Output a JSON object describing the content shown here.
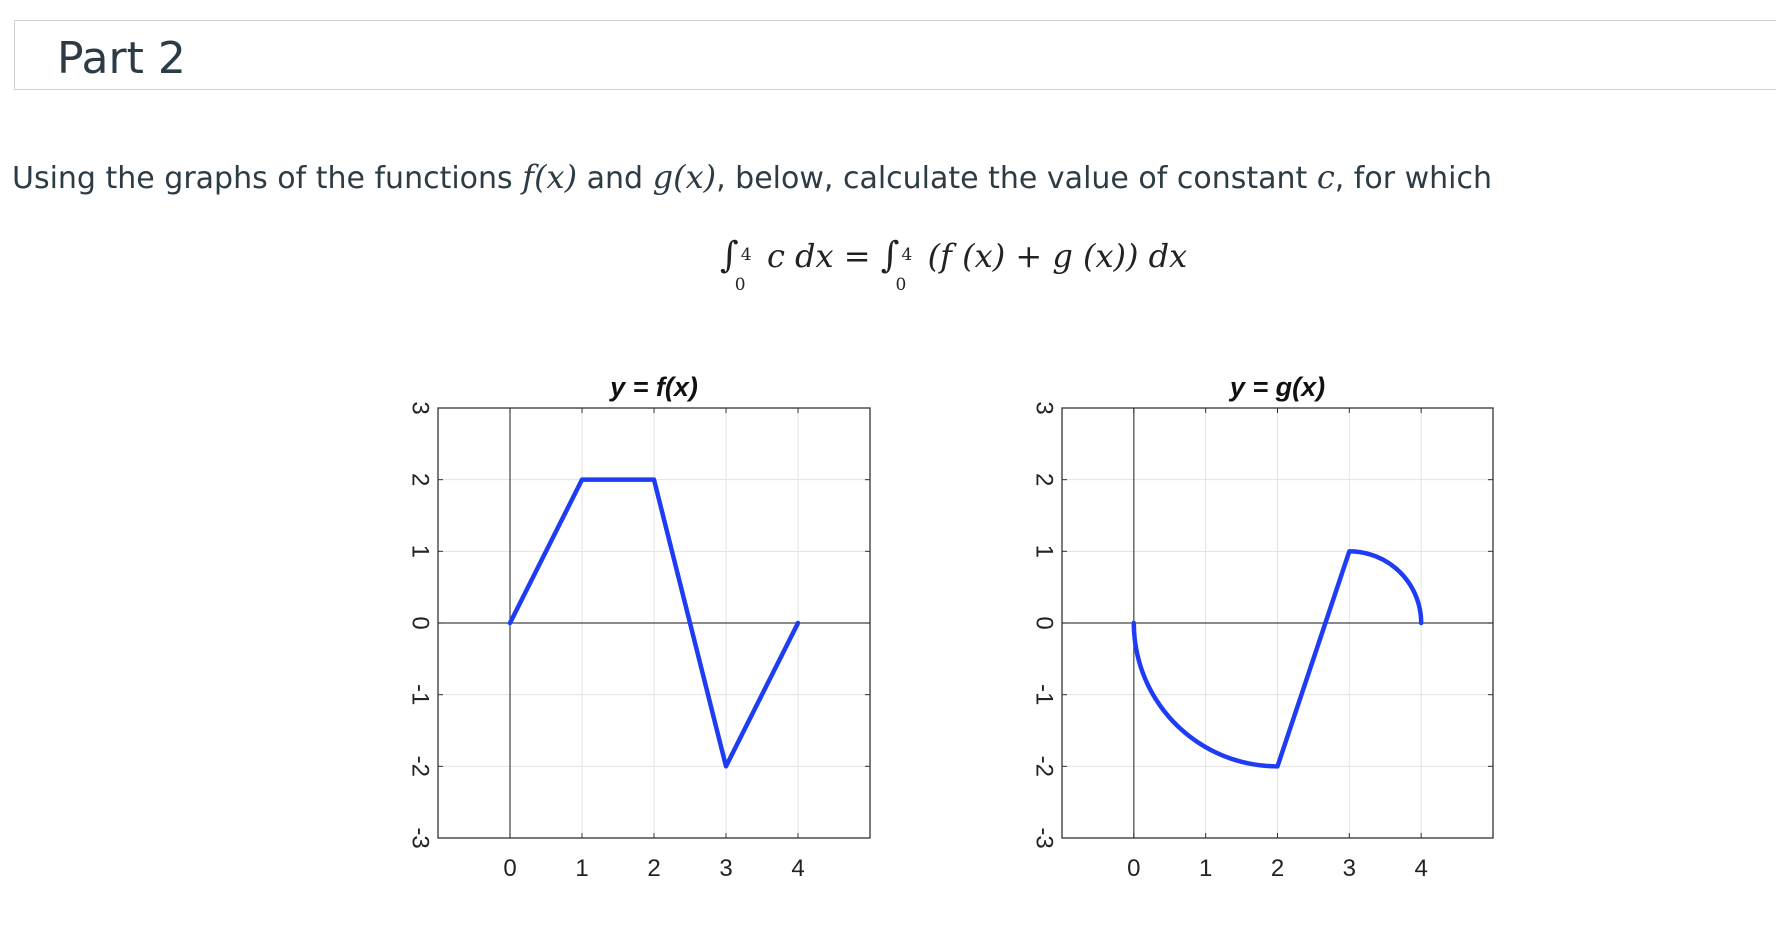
{
  "header": {
    "title": "Part 2"
  },
  "question": {
    "text_before": "Using the graphs of the functions ",
    "f": "f(x)",
    "and": " and ",
    "g": "g(x)",
    "middle": ", below, calculate the value of constant ",
    "c": "c",
    "after": ", for which"
  },
  "equation": {
    "lhs_integral": "∫",
    "lhs_upper": "4",
    "lhs_lower": "0",
    "lhs_body": "c dx",
    "equals": " = ",
    "rhs_integral": "∫",
    "rhs_upper": "4",
    "rhs_lower": "0",
    "rhs_body": "(f (x) + g (x)) dx"
  },
  "chart_data": [
    {
      "type": "line",
      "title": "y = f(x)",
      "xlim": [
        -1,
        5
      ],
      "ylim": [
        -3,
        3
      ],
      "x_ticks": [
        "0",
        "1",
        "2",
        "3",
        "4"
      ],
      "y_ticks": [
        "3",
        "2",
        "1",
        "0",
        "-1",
        "-2",
        "-3"
      ],
      "grid": true,
      "color": "#1f3cf5",
      "series": [
        {
          "segments": [
            {
              "kind": "line",
              "points": [
                [
                  0,
                  0
                ],
                [
                  1,
                  2
                ],
                [
                  2,
                  2
                ],
                [
                  3,
                  -2
                ],
                [
                  4,
                  0
                ]
              ]
            }
          ]
        }
      ]
    },
    {
      "type": "line",
      "title": "y = g(x)",
      "xlim": [
        -1,
        5
      ],
      "ylim": [
        -3,
        3
      ],
      "x_ticks": [
        "0",
        "1",
        "2",
        "3",
        "4"
      ],
      "y_ticks": [
        "3",
        "2",
        "1",
        "0",
        "-1",
        "-2",
        "-3"
      ],
      "grid": true,
      "color": "#1f3cf5",
      "series": [
        {
          "segments": [
            {
              "kind": "arc",
              "center": [
                2,
                0
              ],
              "radius": 2,
              "from_deg": 180,
              "to_deg": 270
            },
            {
              "kind": "line",
              "points": [
                [
                  2,
                  -2
                ],
                [
                  3,
                  1
                ]
              ]
            },
            {
              "kind": "arc",
              "center": [
                3,
                0
              ],
              "radius": 1,
              "from_deg": 90,
              "to_deg": 0
            }
          ]
        }
      ]
    }
  ]
}
